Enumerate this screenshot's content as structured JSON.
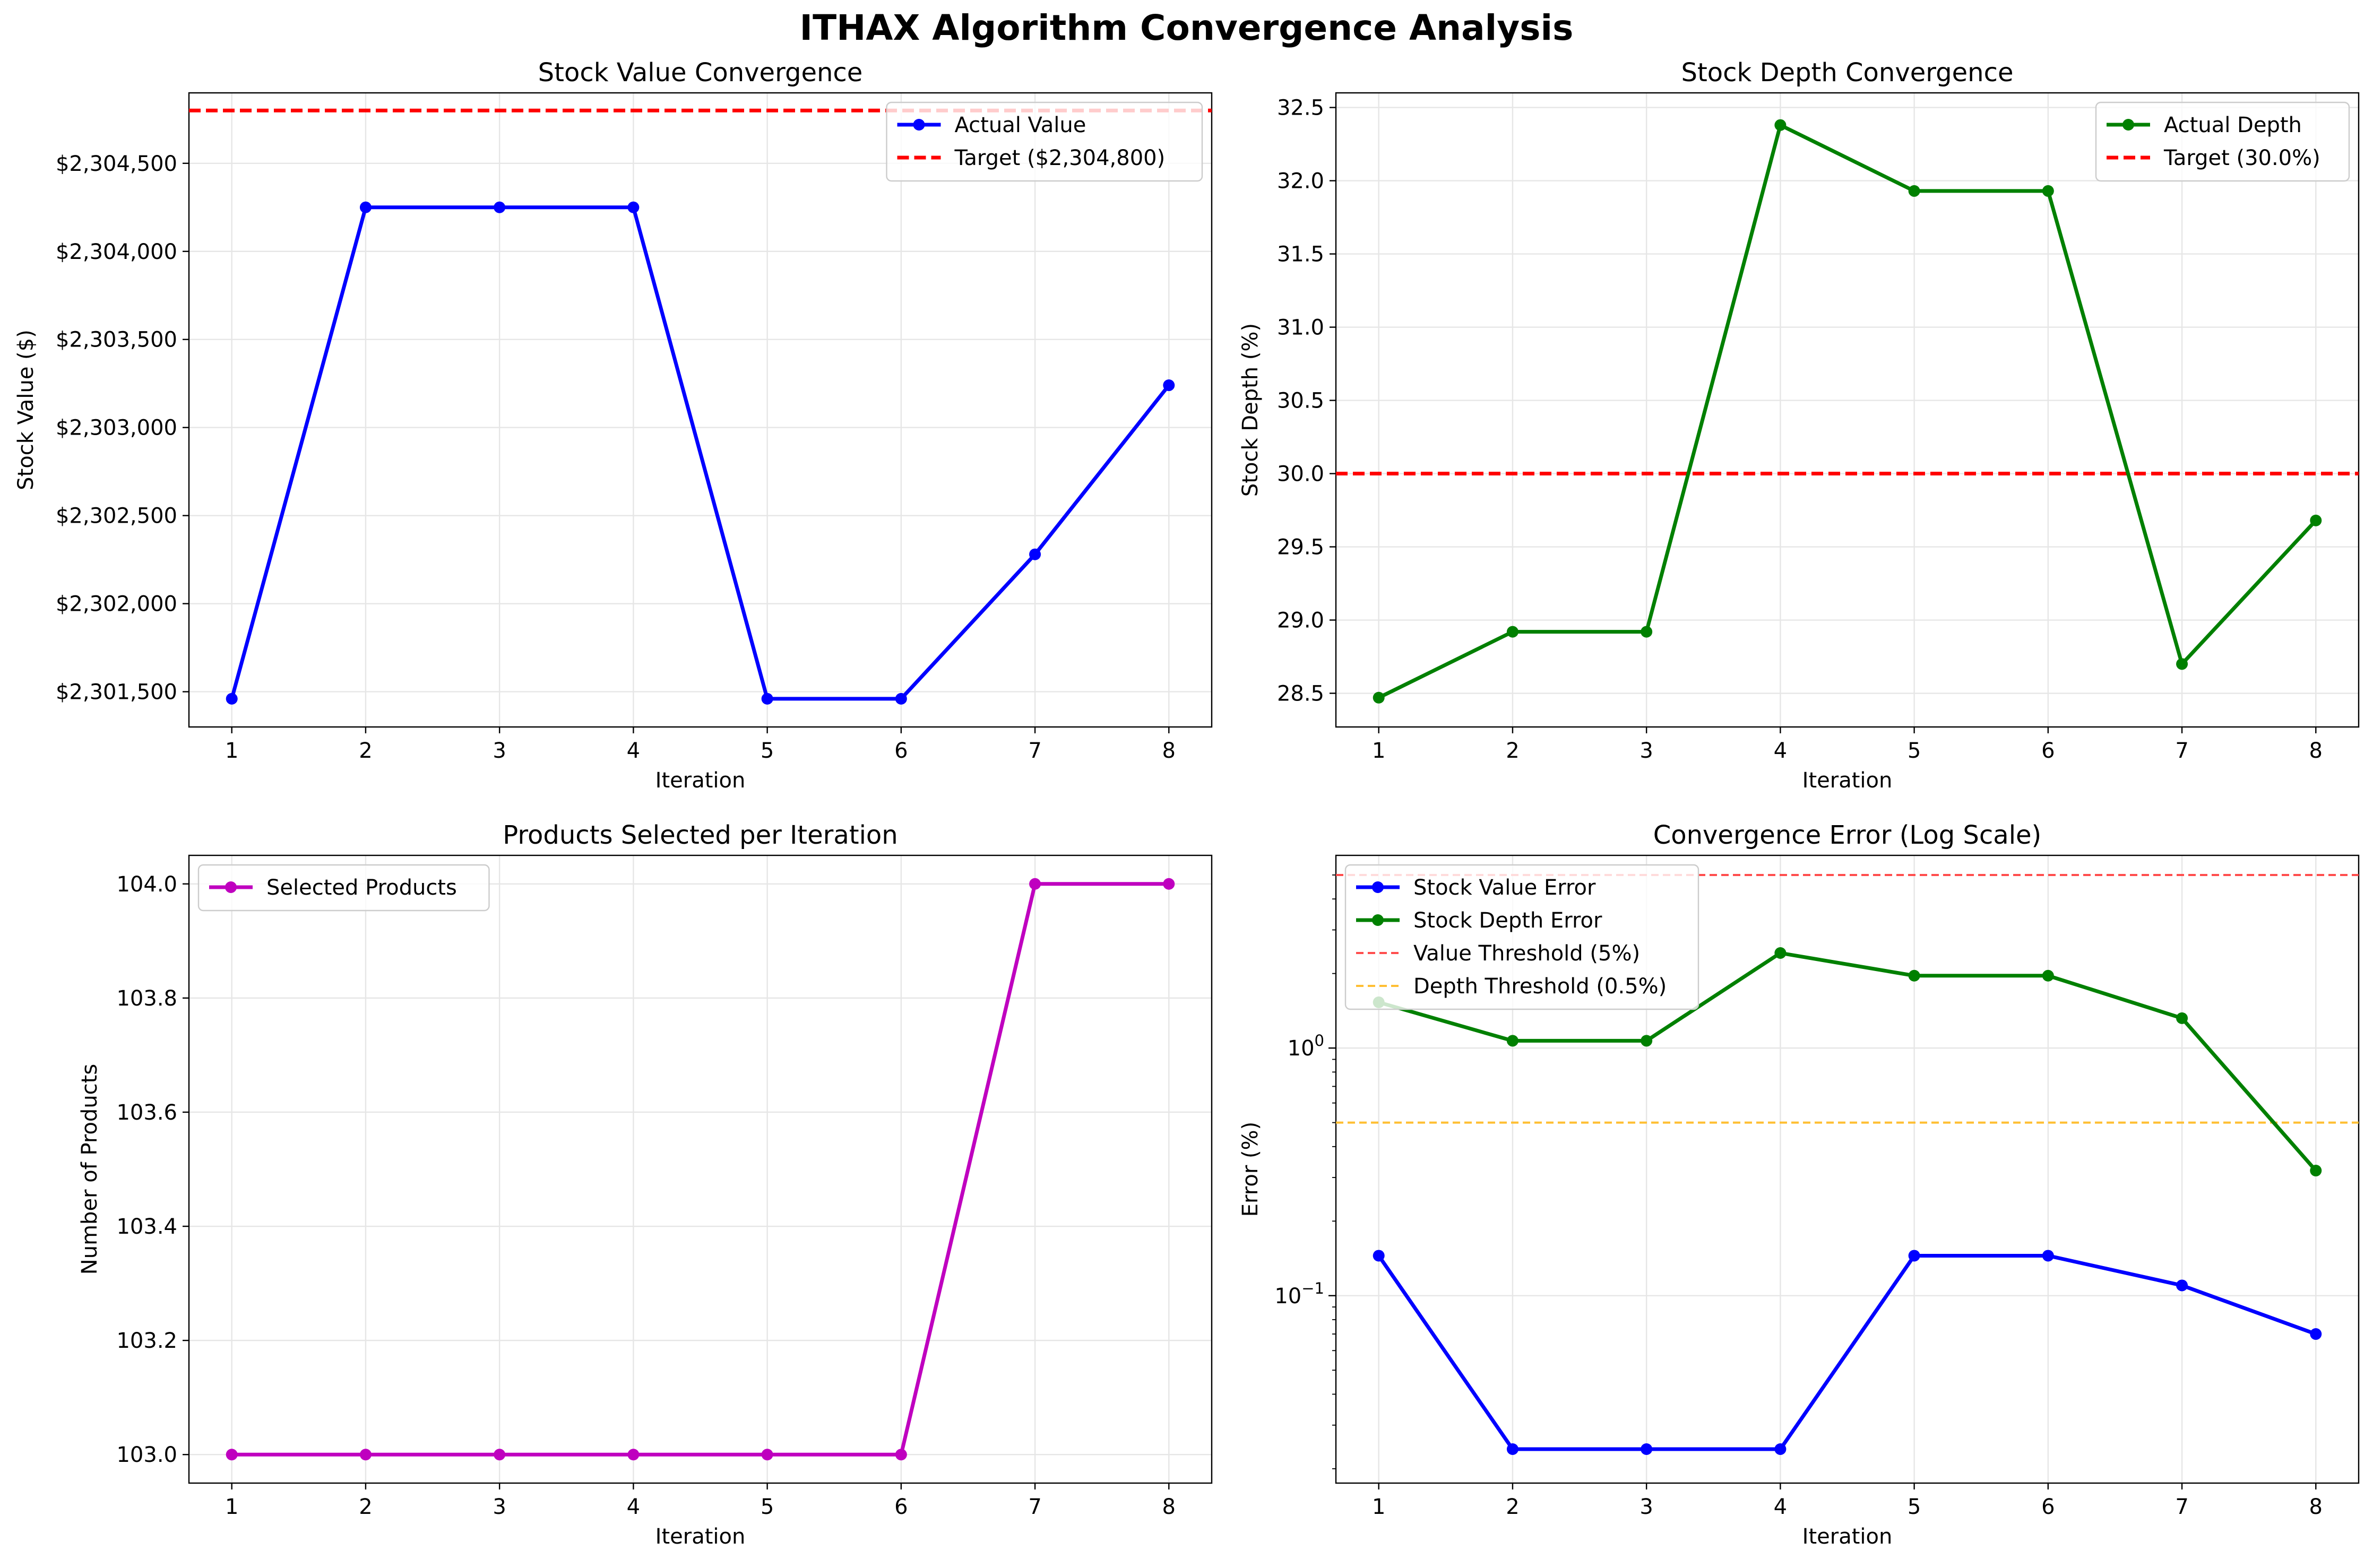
{
  "figure": {
    "title": "ITHAX Algorithm Convergence Analysis"
  },
  "chart_data": [
    {
      "type": "line",
      "title": "Stock Value Convergence",
      "xlabel": "Iteration",
      "ylabel": "Stock Value ($)",
      "x": [
        1,
        2,
        3,
        4,
        5,
        6,
        7,
        8
      ],
      "xlim": [
        0.68,
        8.32
      ],
      "ylim": [
        2301300,
        2304900
      ],
      "yticks": [
        2301500,
        2302000,
        2302500,
        2303000,
        2303500,
        2304000,
        2304500
      ],
      "ytick_labels": [
        "$2,301,500",
        "$2,302,000",
        "$2,302,500",
        "$2,303,000",
        "$2,303,500",
        "$2,304,000",
        "$2,304,500"
      ],
      "grid": true,
      "legend": "top-right",
      "series": [
        {
          "name": "Actual Value",
          "color": "#0000ff",
          "marker": true,
          "values": [
            2301460,
            2304250,
            2304250,
            2304250,
            2301460,
            2301460,
            2302280,
            2303240
          ]
        }
      ],
      "hlines": [
        {
          "name": "Target ($2,304,800)",
          "value": 2304800,
          "color": "#ff0000",
          "dash": "thick"
        }
      ]
    },
    {
      "type": "line",
      "title": "Stock Depth Convergence",
      "xlabel": "Iteration",
      "ylabel": "Stock Depth (%)",
      "x": [
        1,
        2,
        3,
        4,
        5,
        6,
        7,
        8
      ],
      "xlim": [
        0.68,
        8.32
      ],
      "ylim": [
        28.27,
        32.6
      ],
      "yticks": [
        28.5,
        29.0,
        29.5,
        30.0,
        30.5,
        31.0,
        31.5,
        32.0,
        32.5
      ],
      "ytick_labels": [
        "28.5",
        "29.0",
        "29.5",
        "30.0",
        "30.5",
        "31.0",
        "31.5",
        "32.0",
        "32.5"
      ],
      "grid": true,
      "legend": "top-right",
      "series": [
        {
          "name": "Actual Depth",
          "color": "#008000",
          "marker": true,
          "values": [
            28.47,
            28.92,
            28.92,
            32.38,
            31.93,
            31.93,
            28.7,
            29.68
          ]
        }
      ],
      "hlines": [
        {
          "name": "Target (30.0%)",
          "value": 30.0,
          "color": "#ff0000",
          "dash": "thick"
        }
      ]
    },
    {
      "type": "line",
      "title": "Products Selected per Iteration",
      "xlabel": "Iteration",
      "ylabel": "Number of Products",
      "x": [
        1,
        2,
        3,
        4,
        5,
        6,
        7,
        8
      ],
      "xlim": [
        0.68,
        8.32
      ],
      "ylim": [
        102.95,
        104.05
      ],
      "yticks": [
        103.0,
        103.2,
        103.4,
        103.6,
        103.8,
        104.0
      ],
      "ytick_labels": [
        "103.0",
        "103.2",
        "103.4",
        "103.6",
        "103.8",
        "104.0"
      ],
      "grid": true,
      "legend": "top-left",
      "series": [
        {
          "name": "Selected Products",
          "color": "#bf00bf",
          "marker": true,
          "values": [
            103,
            103,
            103,
            103,
            103,
            103,
            104,
            104
          ]
        }
      ],
      "hlines": []
    },
    {
      "type": "line",
      "title": "Convergence Error (Log Scale)",
      "xlabel": "Iteration",
      "ylabel": "Error (%)",
      "yscale": "log",
      "x": [
        1,
        2,
        3,
        4,
        5,
        6,
        7,
        8
      ],
      "xlim": [
        0.68,
        8.32
      ],
      "ylim": [
        0.0175,
        6.0
      ],
      "major_yticks": [
        0.1,
        1
      ],
      "major_ytick_labels": [
        "10^-1",
        "10^0"
      ],
      "grid": true,
      "legend": "top-left",
      "series": [
        {
          "name": "Stock Value Error",
          "color": "#0000ff",
          "marker": true,
          "values": [
            0.145,
            0.024,
            0.024,
            0.024,
            0.145,
            0.145,
            0.11,
            0.07
          ]
        },
        {
          "name": "Stock Depth Error",
          "color": "#008000",
          "marker": true,
          "values": [
            1.53,
            1.07,
            1.07,
            2.42,
            1.96,
            1.96,
            1.32,
            0.32
          ]
        }
      ],
      "hlines": [
        {
          "name": "Value Threshold (5%)",
          "value": 5,
          "color": "#ff4d4d",
          "dash": "thin"
        },
        {
          "name": "Depth Threshold (0.5%)",
          "value": 0.5,
          "color": "#ffbf33",
          "dash": "thin"
        }
      ]
    }
  ]
}
